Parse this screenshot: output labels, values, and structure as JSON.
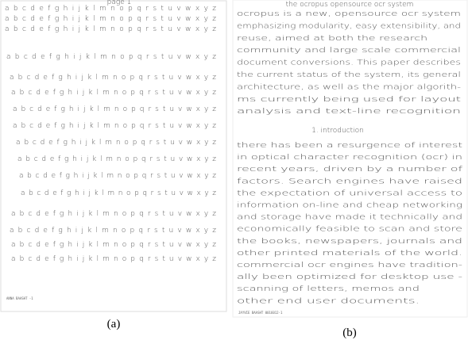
{
  "panel_a": {
    "heading": "page 1",
    "rows": [
      "a b c d e f g h i j k l m n o p q r s t u v w x y z",
      "a b c d e f g h i j k l m n o p q r s t u v w x y z",
      "a b c d e f g h i j k l m n o p q r s t u v w x y z",
      "a b c d e f g h i j k l m n o p q r s t u v w x y z",
      "a b c d e f g h i j k l m n o p q r s t u v w x y z",
      "a b c d e f g h i j k l m n o p q r s t u v w x y z",
      "a b c d e f g h i j k l m n o p q r s t u v w x y z",
      "a b c d e f g h i j k l m n o p q r s t u v w x y z",
      "a b c d e f g h i j k l m n o p q r s t u v w x y z",
      "a b c d e f g h i j k l m n o p q r s t u v w x y z",
      "a b c d e f g h i j k l m n o p q r s t u v w x y z",
      "a b c d e f g h i j k l m n o p q r s t u v w x y z",
      "a b c d e f g h i j k l m n o p q r s t u v w x y z",
      "a b c d e f g h i j k l m n o p q r s t u v w x y z",
      "a b c d e f g h i j k l m n o p q r s t u v w x y z",
      "a b c d e f g h i j k l m n o p q r s t u v w x y z"
    ],
    "footer": "ANNA BAASHT -1",
    "caption": "(a)"
  },
  "panel_b": {
    "title": "the ocropus opensource ocr system",
    "abstract": [
      "ocropus is a new, opensource ocr system",
      "emphasizing modularity, easy extensibility, and",
      "reuse, aimed at both the research",
      "community and large scale commercial",
      "document conversions. This paper describes",
      "the current status of the system, its general",
      "architecture, as well as the major algorith-",
      "ms currently being used for layout",
      "analysis and text-line recognition"
    ],
    "heading": "1. introduction",
    "body": [
      "there has been a resurgence of interest",
      "in optical character recognition (ocr) in",
      "recent years, driven by a number of",
      "factors. Search engines have raised",
      "the expectation of universal access to",
      "information on-line and cheap networking",
      "and storage have made it technically and",
      "economically feasible to scan and store",
      "the books, newspapers, journals and",
      "other printed materials of the world.",
      "commercial ocr engines have tradition-",
      "ally been optimized for desktop use -",
      "scanning of letters, memos and",
      "other end user documents."
    ],
    "footer": "JAYVIE BAASHT 0016012-1",
    "caption": "(b)"
  }
}
